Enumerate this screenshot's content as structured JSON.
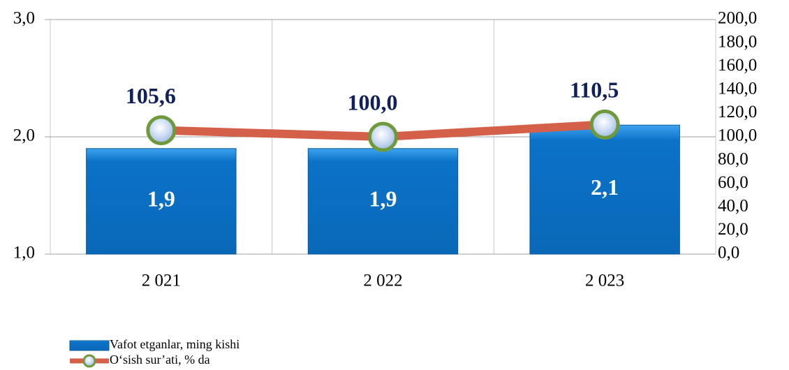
{
  "chart_data": {
    "type": "bar_line",
    "categories": [
      "2 021",
      "2 022",
      "2 023"
    ],
    "series": [
      {
        "name": "Vafot etganlar, ming kishi",
        "type": "bar",
        "color": "#0b72c8",
        "values": [
          1.9,
          1.9,
          2.1
        ],
        "value_labels": [
          "1,9",
          "1,9",
          "2,1"
        ]
      },
      {
        "name": "O‘sish sur’ati, % da",
        "type": "line",
        "axis": "y2",
        "color": "#d4604a",
        "marker_color": "#6f9a3c",
        "values": [
          105.6,
          100.0,
          110.5
        ],
        "value_labels": [
          "105,6",
          "100,0",
          "110,5"
        ]
      }
    ],
    "ylim": [
      1,
      3
    ],
    "yticks": [
      {
        "value": 1,
        "label": "1,0"
      },
      {
        "value": 2,
        "label": "2,0"
      },
      {
        "value": 3,
        "label": "3,0"
      }
    ],
    "y2lim": [
      0,
      200
    ],
    "y2ticks": [
      {
        "value": 0,
        "label": "0,0"
      },
      {
        "value": 20,
        "label": "20,0"
      },
      {
        "value": 40,
        "label": "40,0"
      },
      {
        "value": 60,
        "label": "60,0"
      },
      {
        "value": 80,
        "label": "80,0"
      },
      {
        "value": 100,
        "label": "100,0"
      },
      {
        "value": 120,
        "label": "120,0"
      },
      {
        "value": 140,
        "label": "140,0"
      },
      {
        "value": 160,
        "label": "160,0"
      },
      {
        "value": 180,
        "label": "180,0"
      },
      {
        "value": 200,
        "label": "200,0"
      }
    ],
    "grid": true,
    "legend": "bottom-left"
  }
}
